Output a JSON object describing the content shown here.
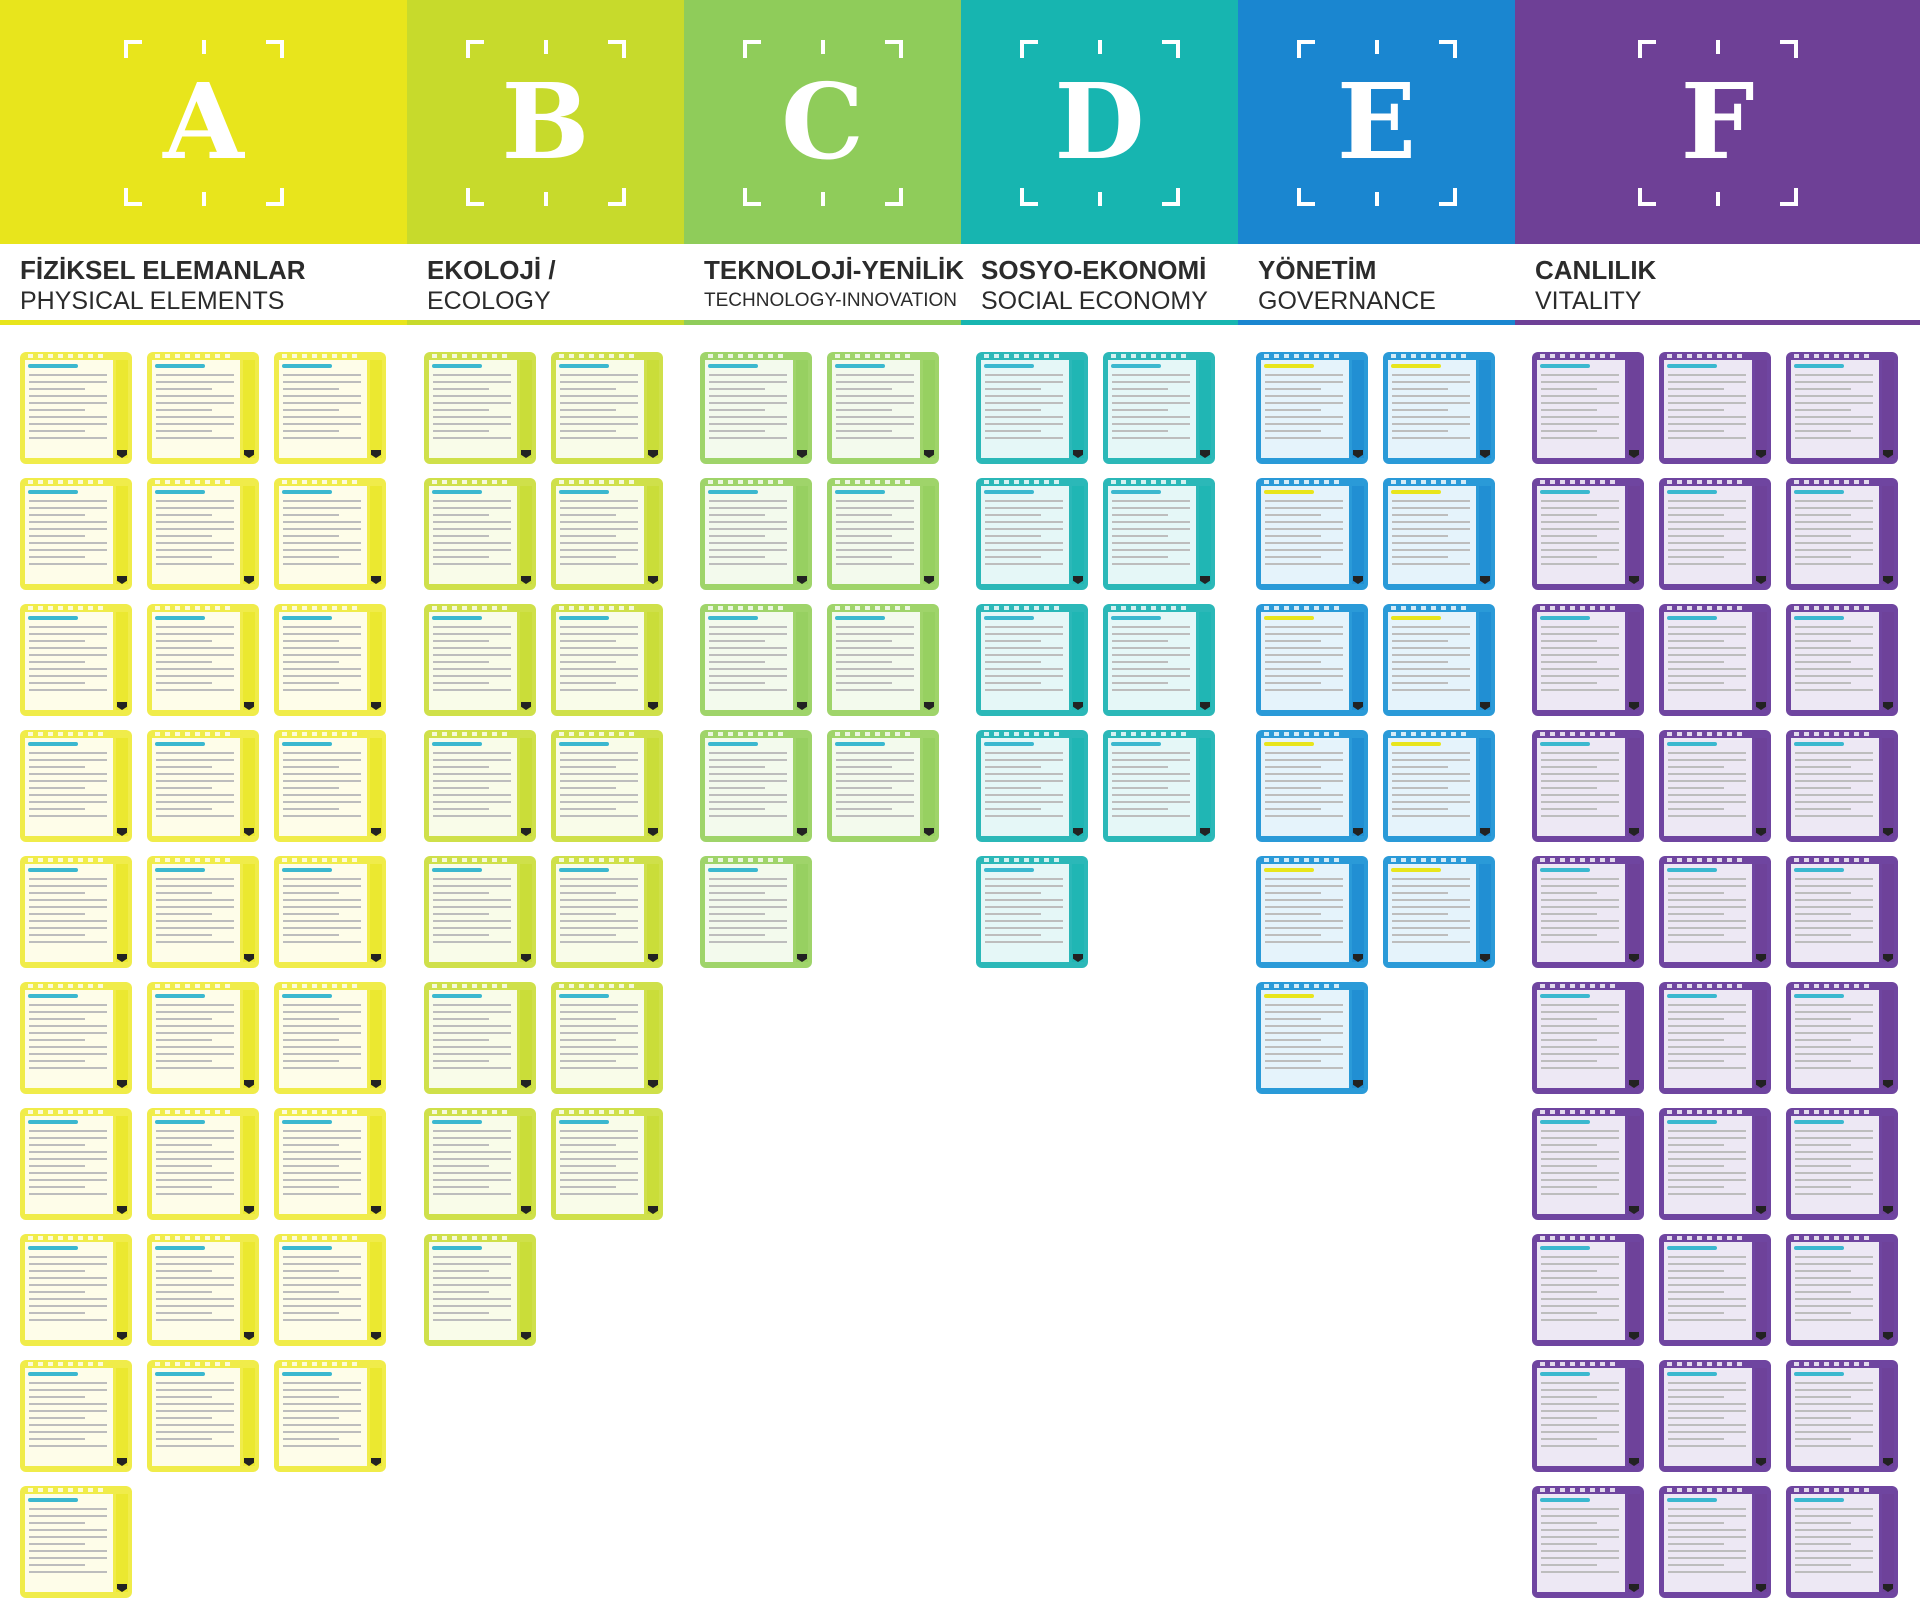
{
  "columns": [
    {
      "letter": "A",
      "title_tr": "FİZİKSEL ELEMANLAR",
      "title_en": "PHYSICAL ELEMENTS",
      "color": "#e8e51c",
      "card_color": "#f0ec4a",
      "accent": "#3bb8cf",
      "card_rows": [
        3,
        3,
        3,
        3,
        3,
        3,
        3,
        3,
        3,
        1
      ]
    },
    {
      "letter": "B",
      "title_tr": "EKOLOJİ /",
      "title_en": "ECOLOGY",
      "color": "#c7da2c",
      "card_color": "#cfe04a",
      "accent": "#3bb8cf",
      "card_rows": [
        2,
        2,
        2,
        2,
        2,
        2,
        2,
        1
      ]
    },
    {
      "letter": "C",
      "title_tr": "TEKNOLOJİ-YENİLİK",
      "title_en": "TECHNOLOGY-INNOVATION",
      "color": "#8fcc5a",
      "card_color": "#9fd46a",
      "accent": "#3bb8cf",
      "card_rows": [
        2,
        2,
        2,
        2,
        1
      ]
    },
    {
      "letter": "D",
      "title_tr": "SOSYO-EKONOMİ",
      "title_en": "SOCIAL ECONOMY",
      "color": "#17b5b0",
      "card_color": "#2bb8b8",
      "accent": "#3bb8cf",
      "card_rows": [
        2,
        2,
        2,
        2,
        1
      ]
    },
    {
      "letter": "E",
      "title_tr": "YÖNETİM",
      "title_en": "GOVERNANCE",
      "color": "#1a86d0",
      "card_color": "#2a9ad8",
      "accent": "#e8e51c",
      "card_rows": [
        2,
        2,
        2,
        2,
        2,
        1
      ]
    },
    {
      "letter": "F",
      "title_tr": "CANLILIK",
      "title_en": "VITALITY",
      "color": "#6e4096",
      "card_color": "#6f45a0",
      "accent": "#3bb8cf",
      "card_rows": [
        3,
        3,
        3,
        3,
        3,
        3,
        3,
        3,
        3,
        3
      ]
    }
  ]
}
